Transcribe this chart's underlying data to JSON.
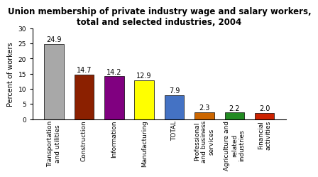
{
  "title": "Union membership of private industry wage and salary workers,\ntotal and selected industries, 2004",
  "categories": [
    "Transportation\nand utilities",
    "Construction",
    "Information",
    "Manufacturing",
    "TOTAL",
    "Professional\nand business\nservices",
    "Agriculture and\nrelated\nindustries",
    "Financial\nactivities"
  ],
  "values": [
    24.9,
    14.7,
    14.2,
    12.9,
    7.9,
    2.3,
    2.2,
    2.0
  ],
  "bar_colors": [
    "#a8a8a8",
    "#8b2000",
    "#800080",
    "#ffff00",
    "#4472c4",
    "#cc6600",
    "#228b22",
    "#cc2200"
  ],
  "ylabel": "Percent of workers",
  "ylim": [
    0,
    30
  ],
  "yticks": [
    0,
    5,
    10,
    15,
    20,
    25,
    30
  ],
  "title_fontsize": 8.5,
  "label_fontsize": 7.0,
  "tick_fontsize": 6.5,
  "value_fontsize": 7.0,
  "background_color": "#ffffff"
}
